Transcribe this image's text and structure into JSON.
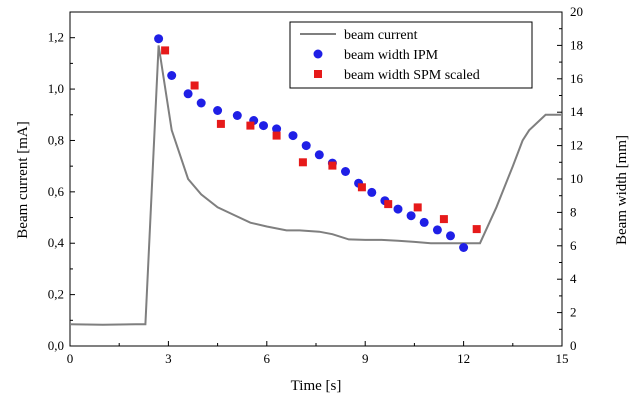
{
  "chart_data": {
    "type": "line",
    "title": "",
    "xlabel": "Time [s]",
    "ylabel": "Beam current [mA]",
    "y2label": "Beam width [mm]",
    "xlim": [
      0,
      15
    ],
    "ylim": [
      0,
      1.3
    ],
    "y2lim": [
      0,
      20
    ],
    "x_ticks": [
      0,
      3,
      6,
      9,
      12,
      15
    ],
    "x_tick_labels": [
      "0",
      "3",
      "6",
      "9",
      "12",
      "15"
    ],
    "y_ticks": [
      0,
      0.2,
      0.4,
      0.6,
      0.8,
      1.0,
      1.2
    ],
    "y_tick_labels": [
      "0,0",
      "0,2",
      "0,4",
      "0,6",
      "0,8",
      "1,0",
      "1,2"
    ],
    "y2_ticks": [
      0,
      2,
      4,
      6,
      8,
      10,
      12,
      14,
      16,
      18,
      20
    ],
    "y2_tick_labels": [
      "0",
      "2",
      "4",
      "6",
      "8",
      "10",
      "12",
      "14",
      "16",
      "18",
      "20"
    ],
    "grid": false,
    "legend_position": "top-right",
    "series": [
      {
        "name": "beam current",
        "type": "line",
        "axis": "left",
        "color": "#7f7f7f",
        "x": [
          0,
          1.0,
          2.0,
          2.3,
          2.7,
          3.1,
          3.6,
          4.0,
          4.5,
          5.0,
          5.5,
          6.0,
          6.6,
          7.0,
          7.6,
          8.0,
          8.5,
          9.0,
          9.5,
          10.0,
          10.5,
          11.0,
          11.5,
          12.0,
          12.5,
          13.0,
          13.5,
          13.8,
          14.0,
          14.5,
          15.0
        ],
        "values": [
          0.085,
          0.083,
          0.085,
          0.085,
          1.17,
          0.84,
          0.65,
          0.59,
          0.54,
          0.51,
          0.48,
          0.465,
          0.45,
          0.45,
          0.445,
          0.435,
          0.415,
          0.413,
          0.413,
          0.41,
          0.405,
          0.4,
          0.4,
          0.4,
          0.4,
          0.54,
          0.7,
          0.8,
          0.84,
          0.9,
          0.9
        ]
      },
      {
        "name": "beam width IPM",
        "type": "scatter",
        "axis": "right",
        "marker": "circle",
        "color": "#1f1fe6",
        "x": [
          2.7,
          3.1,
          3.6,
          4.0,
          4.5,
          5.1,
          5.6,
          5.9,
          6.3,
          6.8,
          7.2,
          7.6,
          8.0,
          8.4,
          8.8,
          9.2,
          9.6,
          10.0,
          10.4,
          10.8,
          11.2,
          11.6,
          12.0
        ],
        "values": [
          18.4,
          16.2,
          15.1,
          14.55,
          14.1,
          13.8,
          13.5,
          13.2,
          13.0,
          12.6,
          12.0,
          11.45,
          10.95,
          10.45,
          9.75,
          9.2,
          8.7,
          8.2,
          7.8,
          7.4,
          6.95,
          6.6,
          5.9
        ]
      },
      {
        "name": "beam width SPM scaled",
        "type": "scatter",
        "axis": "right",
        "marker": "square",
        "color": "#e61a1a",
        "x": [
          2.9,
          3.8,
          4.6,
          5.5,
          6.3,
          7.1,
          8.0,
          8.9,
          9.7,
          10.6,
          11.4,
          12.4
        ],
        "values": [
          17.7,
          15.6,
          13.3,
          13.2,
          12.6,
          11.0,
          10.8,
          9.5,
          8.5,
          8.3,
          7.6,
          7.0
        ]
      }
    ]
  }
}
